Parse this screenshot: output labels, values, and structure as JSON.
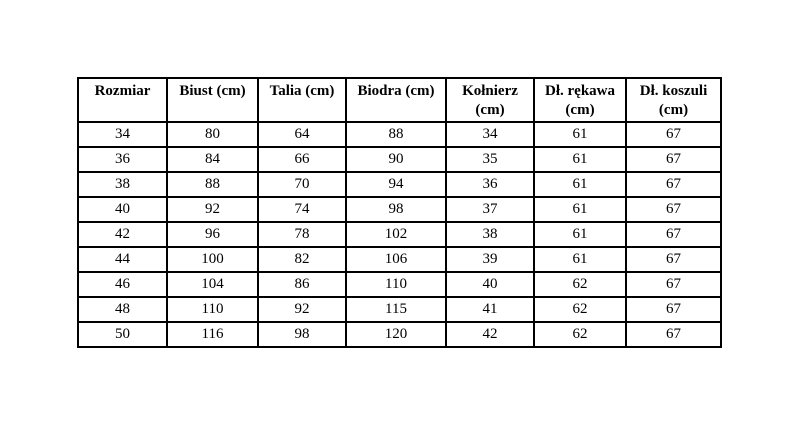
{
  "page": {
    "background": "#ffffff",
    "text_color": "#000000",
    "border_color": "#000000"
  },
  "table": {
    "name": "size-chart",
    "headers": [
      "Rozmiar",
      "Biust (cm)",
      "Talia (cm)",
      "Biodra (cm)",
      "Kołnierz (cm)",
      "Dł. rękawa (cm)",
      "Dł. koszuli (cm)"
    ],
    "rows": [
      [
        "34",
        "80",
        "64",
        "88",
        "34",
        "61",
        "67"
      ],
      [
        "36",
        "84",
        "66",
        "90",
        "35",
        "61",
        "67"
      ],
      [
        "38",
        "88",
        "70",
        "94",
        "36",
        "61",
        "67"
      ],
      [
        "40",
        "92",
        "74",
        "98",
        "37",
        "61",
        "67"
      ],
      [
        "42",
        "96",
        "78",
        "102",
        "38",
        "61",
        "67"
      ],
      [
        "44",
        "100",
        "82",
        "106",
        "39",
        "61",
        "67"
      ],
      [
        "46",
        "104",
        "86",
        "110",
        "40",
        "62",
        "67"
      ],
      [
        "48",
        "110",
        "92",
        "115",
        "41",
        "62",
        "67"
      ],
      [
        "50",
        "116",
        "98",
        "120",
        "42",
        "62",
        "67"
      ]
    ]
  }
}
